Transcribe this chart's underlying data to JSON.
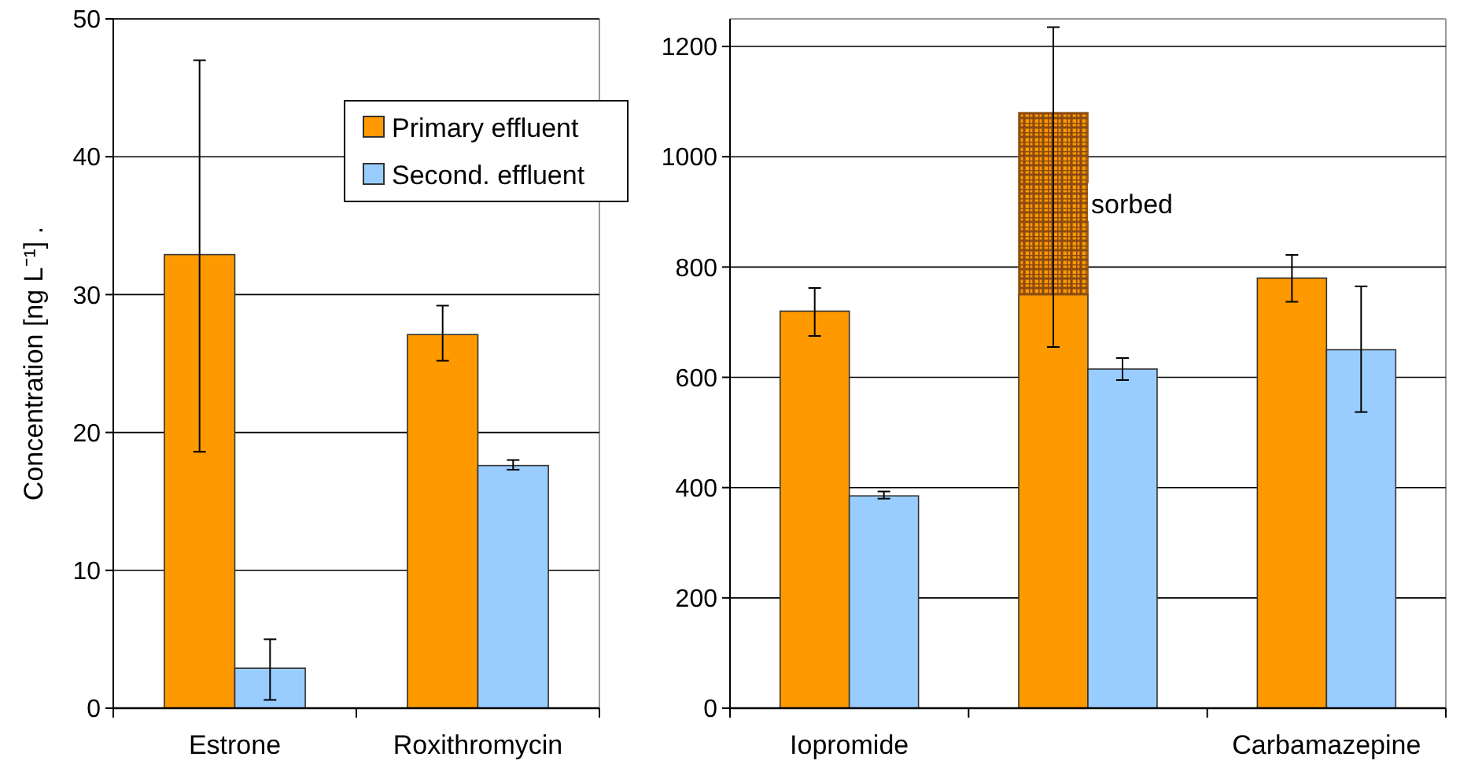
{
  "chart_data": [
    {
      "type": "bar",
      "ylabel": "Concentration [ng L⁻¹] .",
      "categories": [
        "Estrone",
        "Roxithromycin"
      ],
      "ylim": [
        0,
        50
      ],
      "yticks": [
        0,
        10,
        20,
        30,
        40,
        50
      ],
      "grid": "y",
      "legend": "top right",
      "series": [
        {
          "name": "Primary effluent",
          "color": "#ff9900",
          "values": [
            32.9,
            27.1
          ],
          "errors": [
            [
              18.6,
              47
            ],
            [
              25.2,
              29.2
            ]
          ]
        },
        {
          "name": "Second. effluent",
          "color": "#99ccff",
          "values": [
            2.9,
            17.6
          ],
          "errors": [
            [
              0.6,
              5
            ],
            [
              17.3,
              18
            ]
          ]
        }
      ]
    },
    {
      "type": "bar",
      "categories": [
        "Iopromide",
        null,
        "Carbamazepine"
      ],
      "ylim": [
        0,
        1250
      ],
      "yticks": [
        0,
        200,
        400,
        600,
        800,
        1000,
        1200
      ],
      "grid": "y",
      "legend": false,
      "annotations": [
        "sorbed"
      ],
      "series": [
        {
          "color": "#ff9900",
          "values": [
            720,
            750,
            780
          ],
          "errors": [
            [
              675,
              762
            ],
            [
              655,
              1235
            ],
            [
              737,
              822
            ]
          ]
        },
        {
          "color": "#8b4a10",
          "values": [
            null,
            330,
            null
          ],
          "base": [
            null,
            750,
            null
          ]
        },
        {
          "color": "#99ccff",
          "values": [
            385,
            615,
            650
          ],
          "errors": [
            [
              380,
              393
            ],
            [
              595,
              635
            ],
            [
              537,
              765
            ]
          ]
        }
      ]
    }
  ]
}
